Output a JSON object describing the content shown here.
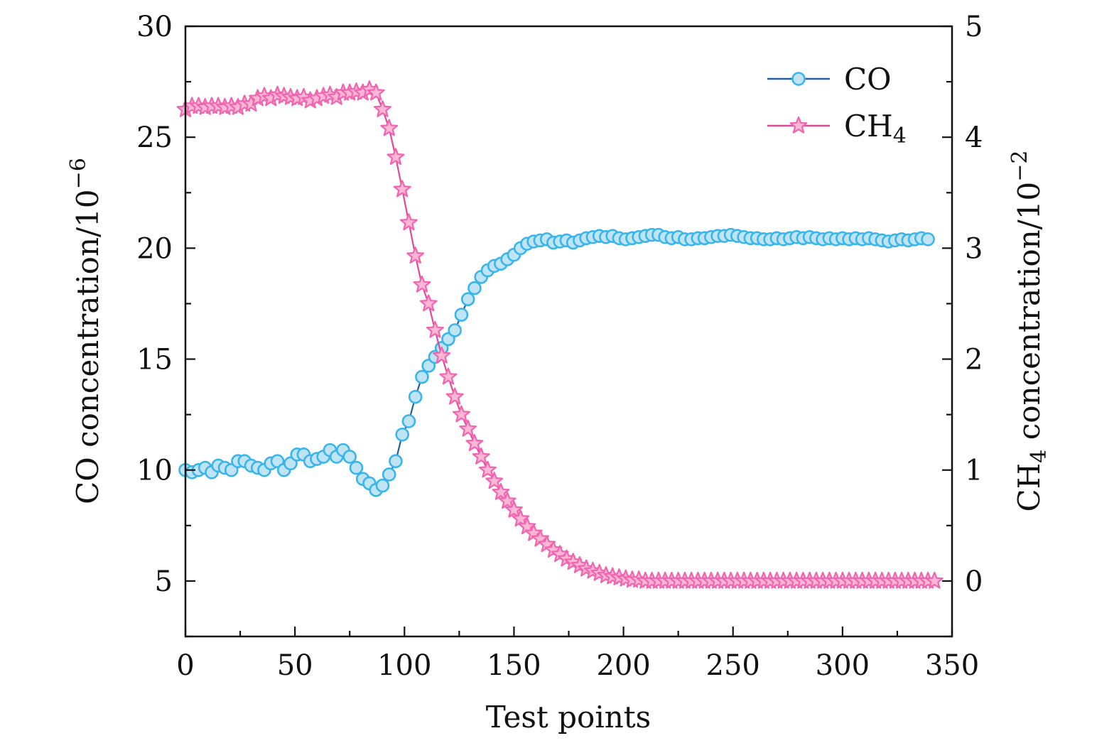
{
  "chart_data": {
    "type": "line",
    "xlabel": "Test points",
    "ylabel_left": {
      "base": "CO concentration/10",
      "exp": "−6"
    },
    "ylabel_right": {
      "base": "CH",
      "sub": "4",
      "mid": " concentration/10",
      "exp": "−2"
    },
    "xlim": [
      0,
      350
    ],
    "ylim_left": [
      2.5,
      30
    ],
    "ylim_right": [
      -0.5,
      5
    ],
    "xticks": [
      0,
      50,
      100,
      150,
      200,
      250,
      300,
      350
    ],
    "xtick_labels": [
      "0",
      "50",
      "100",
      "150",
      "200",
      "250",
      "300",
      "350"
    ],
    "yticks_left": [
      5,
      10,
      15,
      20,
      25,
      30
    ],
    "ytick_labels_left": [
      "5",
      "10",
      "15",
      "20",
      "25",
      "30"
    ],
    "yticks_right": [
      0,
      1,
      2,
      3,
      4,
      5
    ],
    "ytick_labels_right": [
      "0",
      "1",
      "2",
      "3",
      "4",
      "5"
    ],
    "legend_position": "top-right",
    "grid": false,
    "series": [
      {
        "name": "CO",
        "name_sub": "",
        "axis": "left",
        "marker": "circle",
        "line_color": "#1f5fa0",
        "marker_fill": "#bfe4f6",
        "marker_stroke": "#39b5ea",
        "x": [
          0,
          3,
          6,
          9,
          12,
          15,
          18,
          21,
          24,
          27,
          30,
          33,
          36,
          39,
          42,
          45,
          48,
          51,
          54,
          57,
          60,
          63,
          66,
          69,
          72,
          75,
          78,
          81,
          84,
          87,
          90,
          93,
          96,
          99,
          102,
          105,
          108,
          111,
          114,
          117,
          120,
          123,
          126,
          129,
          132,
          135,
          138,
          141,
          144,
          147,
          150,
          153,
          156,
          159,
          162,
          165,
          168,
          171,
          174,
          177,
          180,
          183,
          186,
          189,
          192,
          195,
          198,
          201,
          204,
          207,
          210,
          213,
          216,
          219,
          222,
          225,
          228,
          231,
          234,
          237,
          240,
          243,
          246,
          249,
          252,
          255,
          258,
          261,
          264,
          267,
          270,
          273,
          276,
          279,
          282,
          285,
          288,
          291,
          294,
          297,
          300,
          303,
          306,
          309,
          312,
          315,
          318,
          321,
          324,
          327,
          330,
          333,
          336,
          339
        ],
        "y": [
          10.0,
          9.9,
          10.0,
          10.1,
          9.9,
          10.2,
          10.1,
          10.0,
          10.4,
          10.4,
          10.2,
          10.1,
          10.0,
          10.3,
          10.4,
          10.0,
          10.3,
          10.7,
          10.7,
          10.4,
          10.5,
          10.6,
          10.9,
          10.6,
          10.9,
          10.6,
          10.1,
          9.6,
          9.4,
          9.1,
          9.3,
          9.8,
          10.4,
          11.6,
          12.2,
          13.3,
          14.2,
          14.7,
          15.1,
          15.5,
          15.9,
          16.3,
          17.0,
          17.7,
          18.2,
          18.7,
          19.0,
          19.2,
          19.3,
          19.5,
          19.7,
          20.0,
          20.2,
          20.3,
          20.35,
          20.4,
          20.25,
          20.3,
          20.35,
          20.25,
          20.35,
          20.45,
          20.5,
          20.55,
          20.5,
          20.55,
          20.45,
          20.4,
          20.45,
          20.5,
          20.55,
          20.6,
          20.6,
          20.5,
          20.45,
          20.5,
          20.4,
          20.4,
          20.45,
          20.45,
          20.5,
          20.55,
          20.55,
          20.6,
          20.55,
          20.5,
          20.45,
          20.45,
          20.4,
          20.4,
          20.45,
          20.4,
          20.45,
          20.5,
          20.45,
          20.5,
          20.45,
          20.4,
          20.45,
          20.4,
          20.45,
          20.4,
          20.45,
          20.4,
          20.45,
          20.4,
          20.35,
          20.3,
          20.35,
          20.4,
          20.35,
          20.4,
          20.45,
          20.4
        ]
      },
      {
        "name": "CH",
        "name_sub": "4",
        "axis": "right",
        "marker": "star",
        "line_color": "#e0489a",
        "marker_fill": "#ffb6d5",
        "marker_stroke": "#f064b0",
        "x": [
          0,
          3,
          6,
          9,
          12,
          15,
          18,
          21,
          24,
          27,
          30,
          33,
          36,
          39,
          42,
          45,
          48,
          51,
          54,
          57,
          60,
          63,
          66,
          69,
          72,
          75,
          78,
          81,
          84,
          87,
          90,
          93,
          96,
          99,
          102,
          105,
          108,
          111,
          114,
          117,
          120,
          123,
          126,
          129,
          132,
          135,
          138,
          141,
          144,
          147,
          150,
          153,
          156,
          159,
          162,
          165,
          168,
          171,
          174,
          177,
          180,
          183,
          186,
          189,
          192,
          195,
          198,
          201,
          204,
          207,
          210,
          213,
          216,
          219,
          222,
          225,
          228,
          231,
          234,
          237,
          240,
          243,
          246,
          249,
          252,
          255,
          258,
          261,
          264,
          267,
          270,
          273,
          276,
          279,
          282,
          285,
          288,
          291,
          294,
          297,
          300,
          303,
          306,
          309,
          312,
          315,
          318,
          321,
          324,
          327,
          330,
          333,
          336,
          339,
          342
        ],
        "y": [
          4.25,
          4.28,
          4.28,
          4.27,
          4.28,
          4.28,
          4.27,
          4.28,
          4.27,
          4.3,
          4.3,
          4.35,
          4.37,
          4.35,
          4.38,
          4.37,
          4.36,
          4.35,
          4.36,
          4.33,
          4.35,
          4.37,
          4.38,
          4.36,
          4.4,
          4.4,
          4.41,
          4.4,
          4.43,
          4.4,
          4.25,
          4.08,
          3.82,
          3.53,
          3.23,
          2.93,
          2.67,
          2.5,
          2.26,
          2.03,
          1.84,
          1.66,
          1.5,
          1.37,
          1.24,
          1.12,
          1.0,
          0.9,
          0.8,
          0.72,
          0.64,
          0.56,
          0.49,
          0.43,
          0.38,
          0.33,
          0.28,
          0.24,
          0.2,
          0.17,
          0.14,
          0.11,
          0.09,
          0.07,
          0.05,
          0.04,
          0.03,
          0.02,
          0.01,
          0.01,
          0.0,
          0.0,
          0.0,
          0.0,
          0.0,
          0.0,
          0.0,
          0.0,
          0.0,
          0.0,
          0.0,
          0.0,
          0.0,
          0.0,
          0.0,
          0.0,
          0.0,
          0.0,
          0.0,
          0.0,
          0.0,
          0.0,
          0.0,
          0.0,
          0.0,
          0.0,
          0.0,
          0.0,
          0.0,
          0.0,
          0.0,
          0.0,
          0.0,
          0.0,
          0.0,
          0.0,
          0.0,
          0.0,
          0.0,
          0.0,
          0.0,
          0.0,
          0.0,
          0.0,
          0.0
        ]
      }
    ]
  }
}
